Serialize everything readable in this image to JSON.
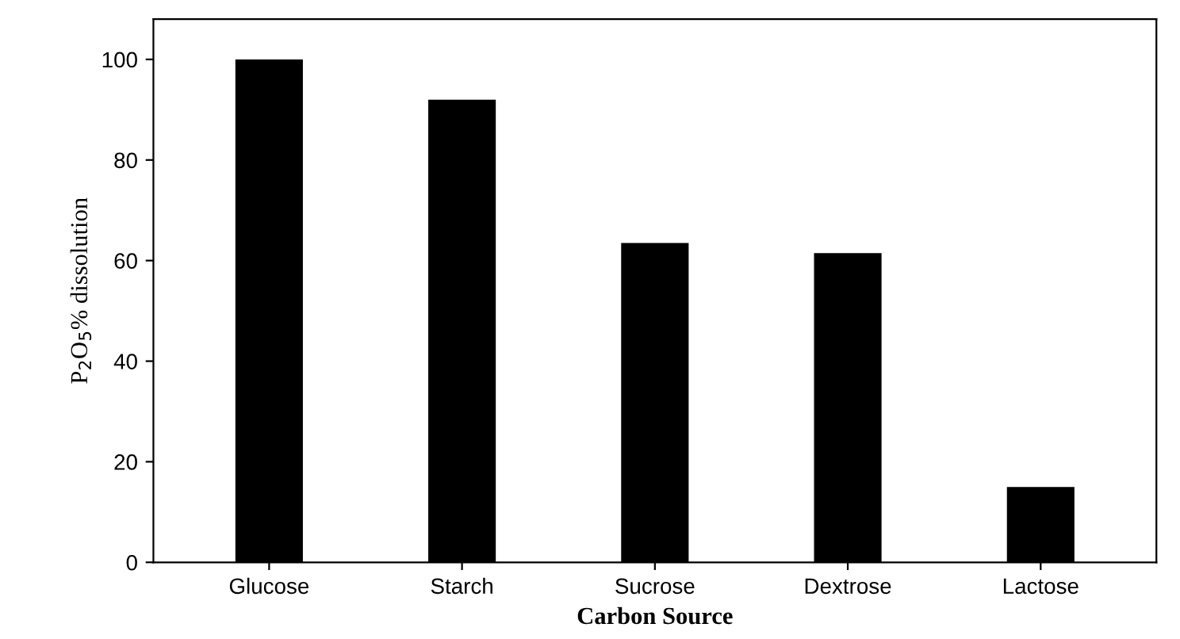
{
  "chart_data": {
    "type": "bar",
    "xlabel": "Carbon Source",
    "ylabel": "P$_{2}$O$_{5}$% dissolution",
    "categories": [
      "Glucose",
      "Starch",
      "Sucrose",
      "Dextrose",
      "Lactose"
    ],
    "values": [
      100,
      92,
      63.5,
      61.5,
      15
    ],
    "color": "#000000",
    "ylim": [
      0,
      108
    ],
    "yticks": [
      0,
      20,
      40,
      60,
      80,
      100
    ],
    "grid": false
  }
}
